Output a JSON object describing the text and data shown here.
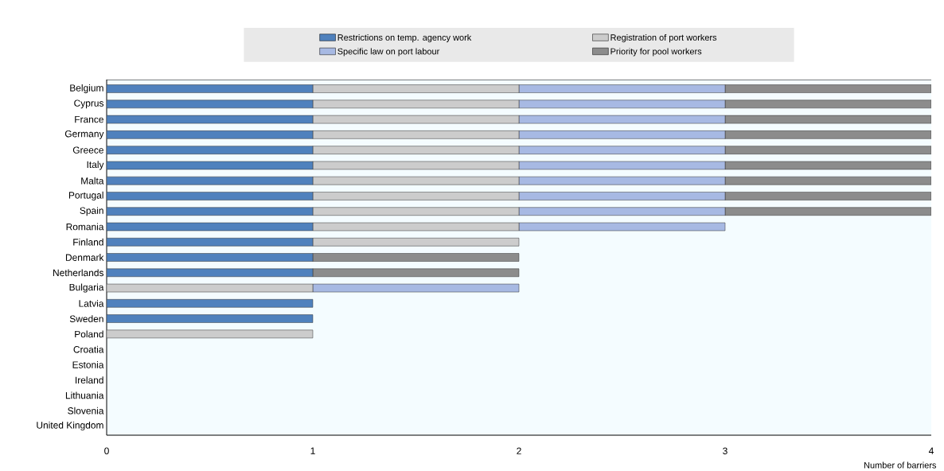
{
  "chart_data": {
    "type": "bar",
    "orientation": "horizontal",
    "stacked": true,
    "xlabel": "Number of barriers",
    "legend": "top",
    "categories": [
      "Belgium",
      "Cyprus",
      "France",
      "Germany",
      "Greece",
      "Italy",
      "Malta",
      "Portugal",
      "Spain",
      "Romania",
      "Finland",
      "Denmark",
      "Netherlands",
      "Bulgaria",
      "Latvia",
      "Sweden",
      "Poland",
      "Croatia",
      "Estonia",
      "Ireland",
      "Lithuania",
      "Slovenia",
      "United Kingdom"
    ],
    "xlim": [
      0,
      4
    ],
    "xticks": [
      0,
      1,
      2,
      3,
      4
    ],
    "series": [
      {
        "name": "Restrictions on temp. agency work",
        "color": "#4f81bd",
        "values": [
          1,
          1,
          1,
          1,
          1,
          1,
          1,
          1,
          1,
          1,
          1,
          1,
          1,
          0,
          1,
          1,
          0,
          0,
          0,
          0,
          0,
          0,
          0
        ]
      },
      {
        "name": "Registration of port workers",
        "color": "#cccccc",
        "values": [
          1,
          1,
          1,
          1,
          1,
          1,
          1,
          1,
          1,
          1,
          1,
          0,
          0,
          1,
          0,
          0,
          1,
          0,
          0,
          0,
          0,
          0,
          0
        ]
      },
      {
        "name": "Specific law on port labour",
        "color": "#a7b9e3",
        "values": [
          1,
          1,
          1,
          1,
          1,
          1,
          1,
          1,
          1,
          1,
          0,
          0,
          0,
          1,
          0,
          0,
          0,
          0,
          0,
          0,
          0,
          0,
          0
        ]
      },
      {
        "name": "Priority for pool workers",
        "color": "#8c8c8c",
        "values": [
          1,
          1,
          1,
          1,
          1,
          1,
          1,
          1,
          1,
          0,
          0,
          1,
          1,
          0,
          0,
          0,
          0,
          0,
          0,
          0,
          0,
          0,
          0
        ]
      }
    ]
  }
}
